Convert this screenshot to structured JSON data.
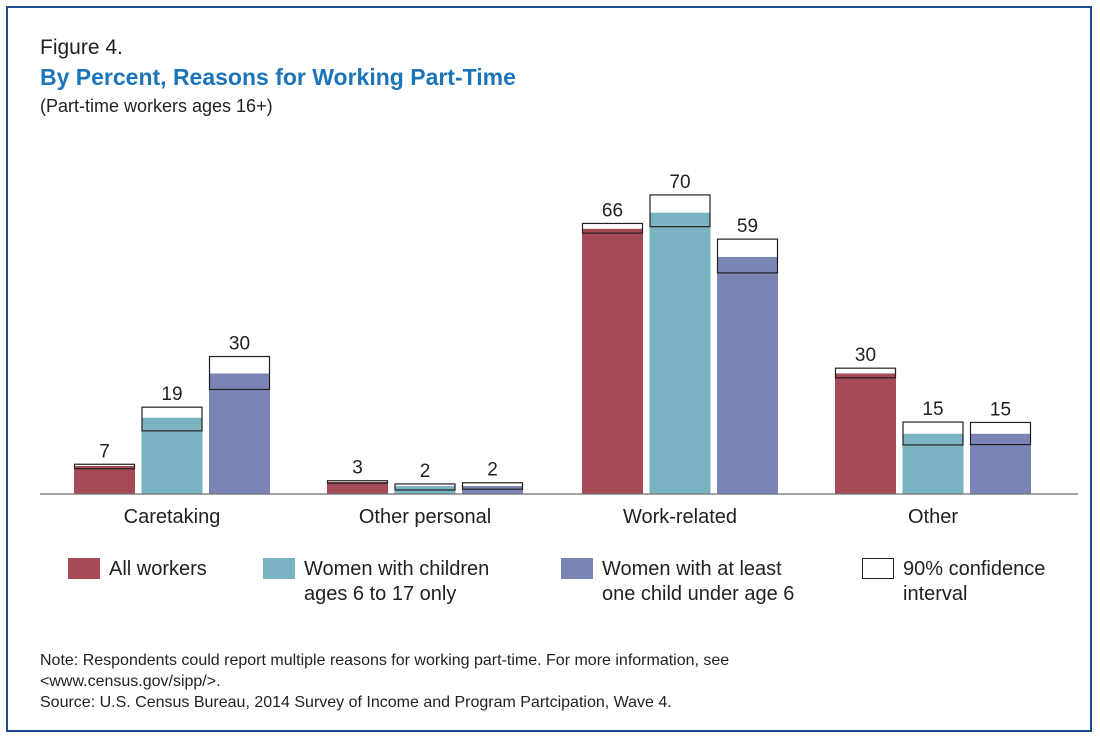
{
  "figure_label": "Figure 4.",
  "title": "By Percent, Reasons for Working Part-Time",
  "subtitle": "(Part-time workers ages 16+)",
  "legend": [
    {
      "lines": [
        "All workers"
      ],
      "color": "#a54a56",
      "kind": "fill"
    },
    {
      "lines": [
        "Women with children",
        "ages 6 to 17 only"
      ],
      "color": "#7ab3c2",
      "kind": "fill"
    },
    {
      "lines": [
        "Women with at least",
        "one child under age 6"
      ],
      "color": "#7a85b5",
      "kind": "fill"
    },
    {
      "lines": [
        "90% confidence",
        "interval"
      ],
      "color": "#ffffff",
      "kind": "outline"
    }
  ],
  "notes": {
    "line1": "Note: Respondents could report multiple reasons for working part-time. For more information, see",
    "line2": "<www.census.gov/sipp/>.",
    "source": "Source: U.S. Census Bureau, 2014 Survey of Income and Program Partcipation, Wave 4."
  },
  "chart_data": {
    "type": "bar",
    "title": "By Percent, Reasons for Working Part-Time",
    "subtitle": "(Part-time workers ages 16+)",
    "xlabel": "",
    "ylabel": "",
    "categories": [
      "Caretaking",
      "Other personal",
      "Work-related",
      "Other"
    ],
    "series": [
      {
        "name": "All workers",
        "color": "#a54a56",
        "values": [
          7,
          3,
          66,
          30
        ],
        "ci_low": [
          6.3,
          2.7,
          64.9,
          28.9
        ],
        "ci_high": [
          7.4,
          3.3,
          67.3,
          31.3
        ]
      },
      {
        "name": "Women with children ages 6 to 17 only",
        "color": "#7ab3c2",
        "values": [
          19,
          2,
          70,
          15
        ],
        "ci_low": [
          15.7,
          1.0,
          66.5,
          12.2
        ],
        "ci_high": [
          21.6,
          2.5,
          74.4,
          17.9
        ]
      },
      {
        "name": "Women with at least one child under age 6",
        "color": "#7a85b5",
        "values": [
          30,
          2,
          59,
          15
        ],
        "ci_low": [
          26.0,
          1.2,
          55.0,
          12.3
        ],
        "ci_high": [
          34.2,
          2.8,
          63.4,
          17.8
        ]
      }
    ],
    "ci_label": "90% confidence interval",
    "ylim": [
      0,
      75
    ],
    "grid": false,
    "legend_position": "bottom"
  }
}
